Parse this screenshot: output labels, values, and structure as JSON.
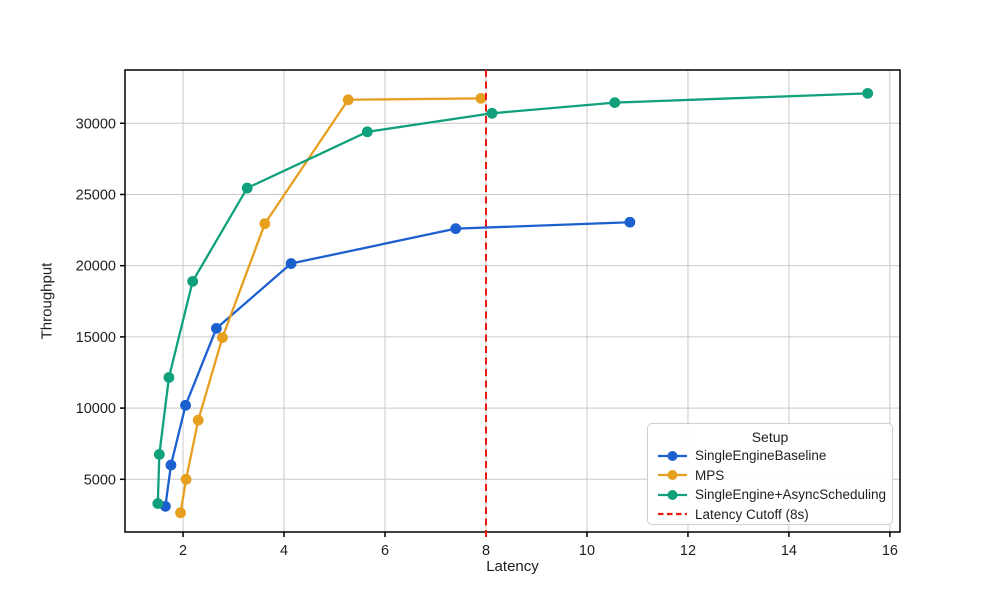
{
  "chart_data": {
    "type": "line",
    "title": "",
    "xlabel": "Latency",
    "ylabel": "Throughput",
    "xlim": [
      0.85,
      16.2
    ],
    "ylim": [
      1300,
      33740
    ],
    "xticks": [
      2,
      4,
      6,
      8,
      10,
      12,
      14,
      16
    ],
    "yticks": [
      5000,
      10000,
      15000,
      20000,
      25000,
      30000
    ],
    "grid": true,
    "legend": {
      "title": "Setup",
      "position": "lower right"
    },
    "series": [
      {
        "name": "SingleEngineBaseline",
        "color": "#1c60d0",
        "marker": "circle",
        "points": [
          [
            1.65,
            3100
          ],
          [
            1.76,
            6000
          ],
          [
            2.05,
            10200
          ],
          [
            2.66,
            15600
          ],
          [
            4.14,
            20150
          ],
          [
            7.4,
            22600
          ],
          [
            10.85,
            23050
          ]
        ]
      },
      {
        "name": "MPS",
        "color": "#e69f1e",
        "marker": "circle",
        "points": [
          [
            1.95,
            2650
          ],
          [
            2.06,
            5000
          ],
          [
            2.3,
            9150
          ],
          [
            2.78,
            14950
          ],
          [
            3.62,
            22950
          ],
          [
            5.27,
            31650
          ],
          [
            7.9,
            31750
          ]
        ]
      },
      {
        "name": "SingleEngine+AsyncScheduling",
        "color": "#10a17c",
        "marker": "circle",
        "points": [
          [
            1.5,
            3300
          ],
          [
            1.53,
            6750
          ],
          [
            1.72,
            12150
          ],
          [
            2.19,
            18900
          ],
          [
            3.27,
            25450
          ],
          [
            5.65,
            29400
          ],
          [
            8.12,
            30700
          ],
          [
            10.55,
            31450
          ],
          [
            15.56,
            32100
          ]
        ]
      }
    ],
    "vline": {
      "x": 8,
      "label": "Latency Cutoff (8s)",
      "color": "#e8190f",
      "style": "dashed"
    },
    "colors": {
      "grid": "#c9c9c9",
      "axis": "#000000",
      "text": "#1f1f1f",
      "background": "#ffffff"
    }
  }
}
